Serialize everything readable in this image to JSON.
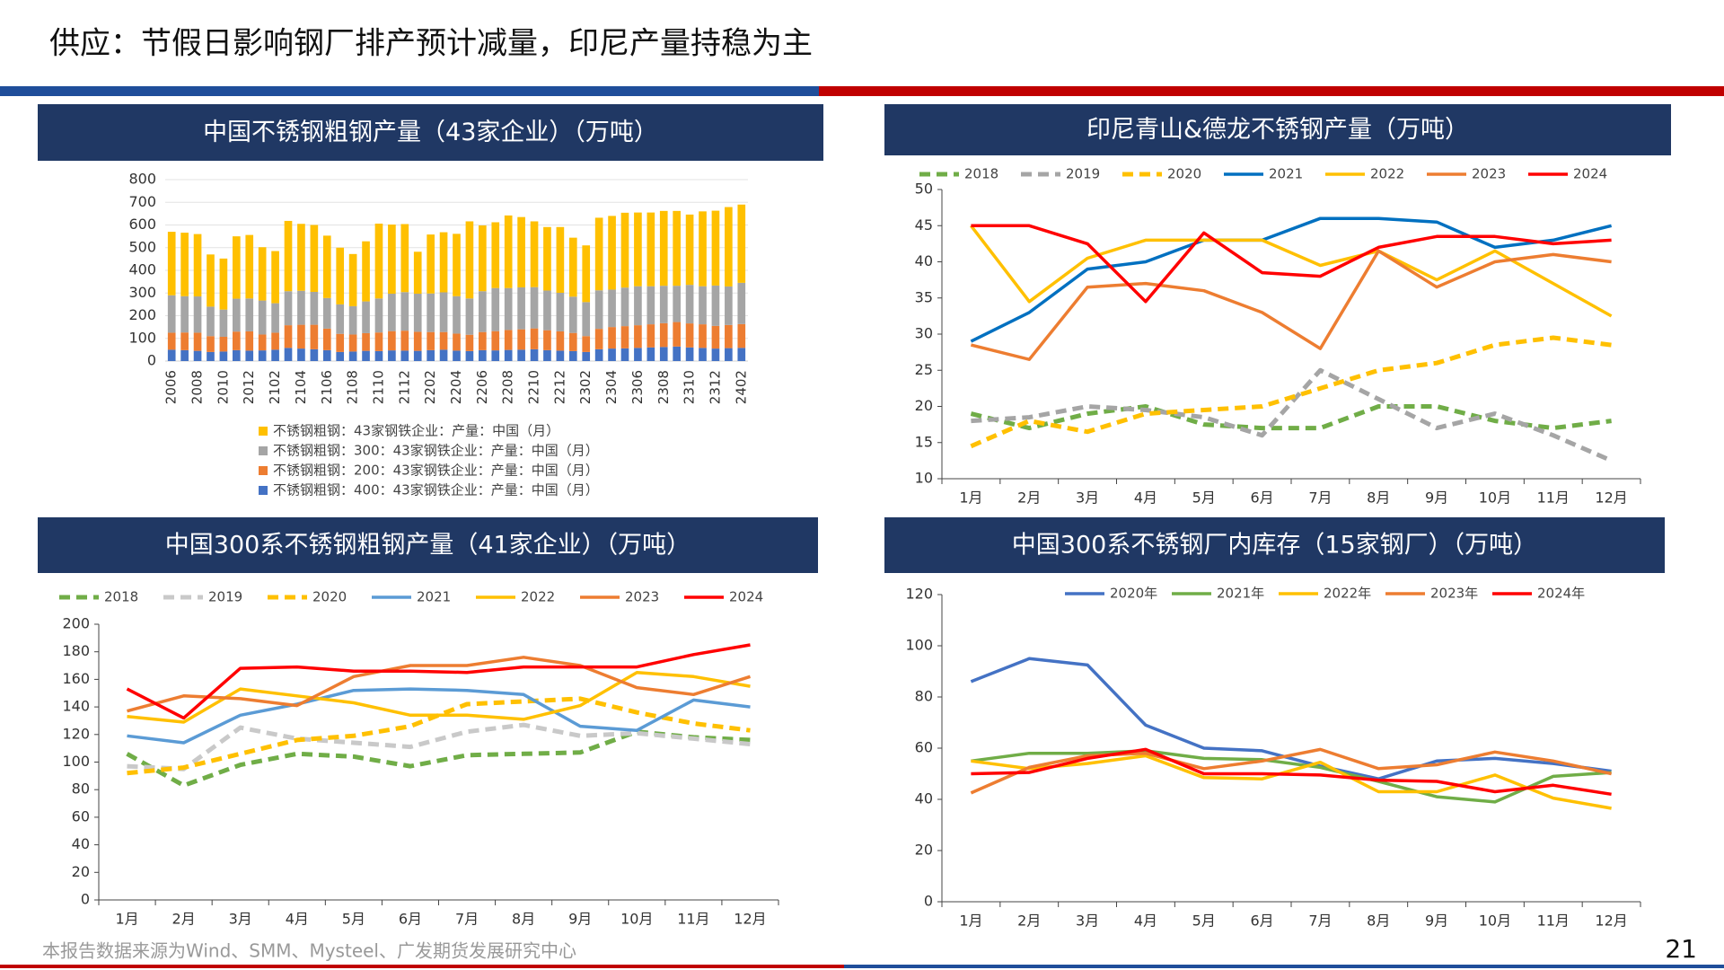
{
  "title": "供应：节假日影响钢厂排产预计减量，印尼产量持稳为主",
  "source": "本报告数据来源为Wind、SMM、Mysteel、广发期货发展研究中心",
  "page_number": "21",
  "chart_data": [
    {
      "type": "bar",
      "stacked": true,
      "title": "中国不锈钢粗钢产量（43家企业）（万吨）",
      "categories": [
        "2006",
        null,
        "2008",
        null,
        "2010",
        null,
        "2012",
        null,
        "2102",
        null,
        "2104",
        null,
        "2106",
        null,
        "2108",
        null,
        "2110",
        null,
        "2112",
        null,
        "2202",
        null,
        "2204",
        null,
        "2206",
        null,
        "2208",
        null,
        "2210",
        null,
        "2212",
        null,
        "2302",
        null,
        "2304",
        null,
        "2306",
        null,
        "2308",
        null,
        "2310",
        null,
        "2312",
        null,
        "2402"
      ],
      "series": [
        {
          "name": "不锈钢粗钢：43家钢铁企业：产量：中国（月）",
          "color": "#ffc000",
          "values": [
            280,
            280,
            275,
            230,
            225,
            275,
            280,
            235,
            230,
            310,
            295,
            295,
            275,
            250,
            230,
            265,
            330,
            305,
            300,
            185,
            260,
            265,
            275,
            340,
            290,
            290,
            320,
            310,
            290,
            280,
            290,
            260,
            250,
            320,
            325,
            330,
            325,
            325,
            330,
            330,
            310,
            330,
            330,
            350,
            345
          ]
        },
        {
          "name": "不锈钢粗钢：300：43家钢铁企业：产量：中国（月）",
          "color": "#a5a5a5",
          "values": [
            165,
            160,
            160,
            130,
            120,
            145,
            145,
            150,
            130,
            150,
            150,
            145,
            135,
            130,
            125,
            140,
            150,
            165,
            170,
            168,
            170,
            175,
            165,
            160,
            180,
            190,
            185,
            185,
            182,
            175,
            170,
            160,
            150,
            170,
            165,
            170,
            172,
            168,
            165,
            160,
            170,
            168,
            178,
            170,
            182
          ]
        },
        {
          "name": "不锈钢粗钢：200：43家钢铁企业：产量：中国（月）",
          "color": "#ed7d31",
          "values": [
            75,
            78,
            80,
            70,
            65,
            82,
            85,
            70,
            75,
            100,
            105,
            108,
            95,
            80,
            75,
            78,
            82,
            85,
            88,
            84,
            80,
            78,
            75,
            72,
            80,
            85,
            88,
            90,
            92,
            88,
            85,
            80,
            70,
            90,
            95,
            98,
            100,
            102,
            105,
            108,
            106,
            104,
            100,
            102,
            105
          ]
        },
        {
          "name": "不锈钢粗钢：400：43家钢铁企业：产量：中国（月）",
          "color": "#4472c4",
          "values": [
            50,
            48,
            45,
            40,
            42,
            48,
            46,
            47,
            50,
            58,
            55,
            52,
            48,
            40,
            42,
            45,
            44,
            47,
            46,
            45,
            48,
            50,
            46,
            44,
            48,
            47,
            49,
            50,
            52,
            48,
            46,
            44,
            40,
            52,
            55,
            56,
            58,
            60,
            62,
            64,
            60,
            58,
            55,
            57,
            58
          ]
        }
      ],
      "ylim": [
        0,
        800
      ],
      "yticks": [
        0,
        100,
        200,
        300,
        400,
        500,
        600,
        700,
        800
      ],
      "grid": true,
      "legend": "bottom"
    },
    {
      "type": "line",
      "title": "印尼青山&德龙不锈钢产量（万吨）",
      "categories": [
        "1月",
        "2月",
        "3月",
        "4月",
        "5月",
        "6月",
        "7月",
        "8月",
        "9月",
        "10月",
        "11月",
        "12月"
      ],
      "series": [
        {
          "name": "2018",
          "color": "#70ad47",
          "dashed": true,
          "values": [
            19,
            17,
            19,
            20,
            17.5,
            17,
            17,
            20,
            20,
            18,
            17,
            18
          ]
        },
        {
          "name": "2019",
          "color": "#a5a5a5",
          "dashed": true,
          "values": [
            18,
            18.5,
            20,
            19.5,
            18.5,
            16,
            25,
            21,
            17,
            19,
            16,
            12.5
          ]
        },
        {
          "name": "2020",
          "color": "#ffc000",
          "dashed": true,
          "values": [
            14.5,
            18,
            16.5,
            19,
            19.5,
            20,
            22.5,
            25,
            26,
            28.5,
            29.5,
            28.5
          ]
        },
        {
          "name": "2021",
          "color": "#0070c0",
          "values": [
            29,
            33,
            39,
            40,
            43,
            43,
            46,
            46,
            45.5,
            42,
            43,
            45
          ]
        },
        {
          "name": "2022",
          "color": "#ffc000",
          "values": [
            45,
            34.5,
            40.5,
            43,
            43,
            43,
            39.5,
            41.5,
            37.5,
            41.5,
            37,
            32.5
          ]
        },
        {
          "name": "2023",
          "color": "#ed7d31",
          "values": [
            28.5,
            26.5,
            36.5,
            37,
            36,
            33,
            28,
            41.5,
            36.5,
            40,
            41,
            40
          ]
        },
        {
          "name": "2024",
          "color": "#ff0000",
          "values": [
            45,
            45,
            42.5,
            34.5,
            44,
            38.5,
            38,
            42,
            43.5,
            43.5,
            42.5,
            43
          ]
        }
      ],
      "ylim": [
        10,
        50
      ],
      "yticks": [
        10,
        15,
        20,
        25,
        30,
        35,
        40,
        45,
        50
      ],
      "grid": false,
      "legend": "top"
    },
    {
      "type": "line",
      "title": "中国300系不锈钢粗钢产量（41家企业）（万吨）",
      "categories": [
        "1月",
        "2月",
        "3月",
        "4月",
        "5月",
        "6月",
        "7月",
        "8月",
        "9月",
        "10月",
        "11月",
        "12月"
      ],
      "series": [
        {
          "name": "2018",
          "color": "#70ad47",
          "dashed": true,
          "values": [
            106,
            83,
            98,
            106,
            104,
            97,
            105,
            106,
            107,
            122,
            118,
            116
          ]
        },
        {
          "name": "2019",
          "color": "#c9c9c9",
          "dashed": true,
          "values": [
            97,
            95,
            125,
            117,
            114,
            111,
            122,
            127,
            119,
            121,
            117,
            113
          ]
        },
        {
          "name": "2020",
          "color": "#ffc000",
          "dashed": true,
          "values": [
            92,
            96,
            106,
            116,
            119,
            126,
            142,
            144,
            146,
            136,
            128,
            123
          ]
        },
        {
          "name": "2021",
          "color": "#5b9bd5",
          "values": [
            119,
            114,
            134,
            142,
            152,
            153,
            152,
            149,
            126,
            123,
            145,
            140
          ]
        },
        {
          "name": "2022",
          "color": "#ffc000",
          "values": [
            133,
            129,
            153,
            148,
            143,
            134,
            134,
            131,
            141,
            165,
            162,
            155
          ]
        },
        {
          "name": "2023",
          "color": "#ed7d31",
          "values": [
            137,
            148,
            146,
            141,
            162,
            170,
            170,
            176,
            170,
            154,
            149,
            162
          ]
        },
        {
          "name": "2024",
          "color": "#ff0000",
          "values": [
            153,
            132,
            168,
            169,
            166,
            166,
            165,
            169,
            169,
            169,
            178,
            185
          ]
        }
      ],
      "ylim": [
        0,
        200
      ],
      "yticks": [
        0,
        20,
        40,
        60,
        80,
        100,
        120,
        140,
        160,
        180,
        200
      ],
      "grid": false,
      "legend": "top"
    },
    {
      "type": "line",
      "title": "中国300系不锈钢厂内库存（15家钢厂）（万吨）",
      "categories": [
        "1月",
        "2月",
        "3月",
        "4月",
        "5月",
        "6月",
        "7月",
        "8月",
        "9月",
        "10月",
        "11月",
        "12月"
      ],
      "series": [
        {
          "name": "2020年",
          "color": "#4472c4",
          "values": [
            86,
            95,
            92.5,
            69,
            60,
            59,
            53,
            48,
            55,
            56,
            54,
            51
          ]
        },
        {
          "name": "2021年",
          "color": "#70ad47",
          "values": [
            55,
            58,
            58,
            59,
            56,
            55.5,
            52.5,
            47,
            41,
            39,
            49,
            50.5
          ]
        },
        {
          "name": "2022年",
          "color": "#ffc000",
          "values": [
            55,
            52,
            54,
            57,
            48.5,
            48,
            54.5,
            43,
            43,
            49.5,
            40.5,
            36.5
          ]
        },
        {
          "name": "2023年",
          "color": "#ed7d31",
          "values": [
            42.5,
            52.5,
            57,
            58,
            52,
            55,
            59.5,
            52,
            53.5,
            58.5,
            55,
            50
          ]
        },
        {
          "name": "2024年",
          "color": "#ff0000",
          "values": [
            50,
            50.5,
            56,
            59.5,
            50,
            50,
            49.5,
            47.5,
            47,
            43,
            45.5,
            42
          ]
        }
      ],
      "ylim": [
        0,
        120
      ],
      "yticks": [
        0,
        20,
        40,
        60,
        80,
        100,
        120
      ],
      "grid": false,
      "legend": "top"
    }
  ]
}
